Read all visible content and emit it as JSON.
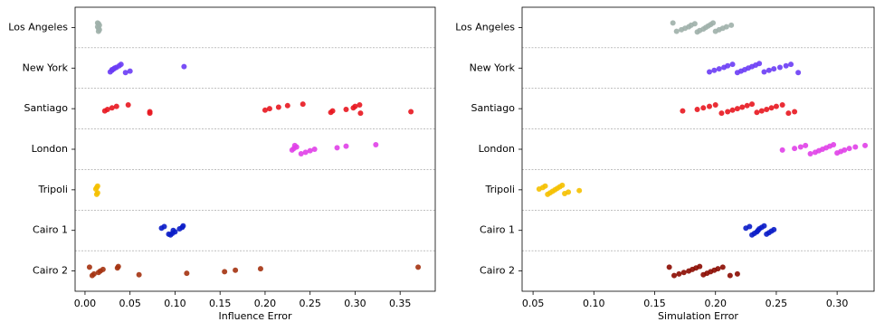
{
  "chart_data": [
    {
      "type": "strip",
      "xlabel": "Influence Error",
      "categories": [
        "Los Angeles",
        "New York",
        "Santiago",
        "London",
        "Tripoli",
        "Cairo 1",
        "Cairo 2"
      ],
      "colors": [
        "#9fb0aa",
        "#6a3cf5",
        "#e8161f",
        "#e040e8",
        "#f5c000",
        "#0a1cc8",
        "#a43210"
      ],
      "values": [
        [
          0.014,
          0.015,
          0.016,
          0.015,
          0.014,
          0.016,
          0.015
        ],
        [
          0.028,
          0.03,
          0.032,
          0.035,
          0.038,
          0.04,
          0.045,
          0.05,
          0.03,
          0.033,
          0.11
        ],
        [
          0.022,
          0.025,
          0.03,
          0.035,
          0.048,
          0.072,
          0.072,
          0.2,
          0.205,
          0.215,
          0.225,
          0.242,
          0.273,
          0.275,
          0.29,
          0.298,
          0.3,
          0.305,
          0.306,
          0.362
        ],
        [
          0.23,
          0.232,
          0.235,
          0.233,
          0.24,
          0.245,
          0.25,
          0.255,
          0.28,
          0.29,
          0.323
        ],
        [
          0.012,
          0.013,
          0.014,
          0.013,
          0.014
        ],
        [
          0.085,
          0.088,
          0.095,
          0.097,
          0.1,
          0.098,
          0.105,
          0.108,
          0.109,
          0.093
        ],
        [
          0.005,
          0.008,
          0.01,
          0.015,
          0.017,
          0.02,
          0.036,
          0.037,
          0.06,
          0.113,
          0.155,
          0.167,
          0.195,
          0.37
        ]
      ],
      "xlim": [
        -0.011,
        0.389
      ],
      "xticks": [
        {
          "value": 0,
          "label": "0.00"
        },
        0.05,
        {
          "value": 0.1,
          "label": "0.10"
        },
        0.15,
        {
          "value": 0.2,
          "label": "0.20"
        },
        0.25,
        {
          "value": 0.3,
          "label": "0.30"
        },
        0.35
      ]
    },
    {
      "type": "strip",
      "xlabel": "Simulation Error",
      "categories": [
        "Los Angeles",
        "New York",
        "Santiago",
        "London",
        "Tripoli",
        "Cairo 1",
        "Cairo 2"
      ],
      "colors": [
        "#9fb0aa",
        "#6a3cf5",
        "#e8161f",
        "#e040e8",
        "#f5c000",
        "#0a1cc8",
        "#8b0a00"
      ],
      "values": [
        [
          0.165,
          0.168,
          0.172,
          0.175,
          0.178,
          0.18,
          0.183,
          0.185,
          0.187,
          0.19,
          0.192,
          0.194,
          0.196,
          0.198,
          0.2,
          0.203,
          0.206,
          0.209,
          0.213
        ],
        [
          0.195,
          0.199,
          0.203,
          0.207,
          0.21,
          0.214,
          0.218,
          0.221,
          0.224,
          0.227,
          0.23,
          0.233,
          0.236,
          0.24,
          0.244,
          0.248,
          0.253,
          0.258,
          0.262,
          0.268
        ],
        [
          0.173,
          0.185,
          0.19,
          0.195,
          0.2,
          0.205,
          0.21,
          0.214,
          0.218,
          0.222,
          0.226,
          0.23,
          0.234,
          0.238,
          0.242,
          0.246,
          0.25,
          0.255,
          0.26,
          0.265
        ],
        [
          0.255,
          0.265,
          0.27,
          0.274,
          0.278,
          0.282,
          0.285,
          0.288,
          0.291,
          0.294,
          0.297,
          0.3,
          0.303,
          0.306,
          0.31,
          0.315,
          0.323
        ],
        [
          0.055,
          0.058,
          0.06,
          0.062,
          0.064,
          0.066,
          0.068,
          0.07,
          0.072,
          0.074,
          0.076,
          0.079,
          0.088
        ],
        [
          0.225,
          0.228,
          0.23,
          0.232,
          0.234,
          0.235,
          0.236,
          0.238,
          0.24,
          0.242,
          0.244,
          0.246,
          0.248
        ],
        [
          0.162,
          0.166,
          0.17,
          0.174,
          0.178,
          0.181,
          0.184,
          0.187,
          0.19,
          0.193,
          0.196,
          0.199,
          0.202,
          0.206,
          0.212,
          0.218
        ]
      ],
      "xlim": [
        0.041,
        0.3304
      ],
      "xticks": [
        0.05,
        {
          "value": 0.1,
          "label": "0.10"
        },
        0.15,
        {
          "value": 0.2,
          "label": "0.20"
        },
        0.25,
        {
          "value": 0.3,
          "label": "0.30"
        }
      ]
    }
  ]
}
